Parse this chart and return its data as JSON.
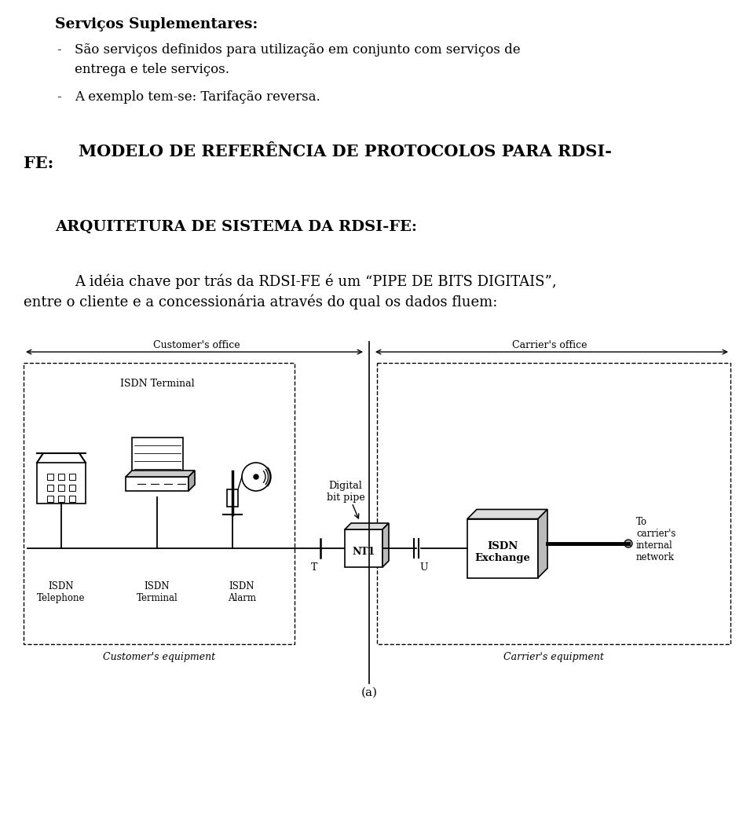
{
  "bg_color": "#ffffff",
  "text_color": "#000000",
  "line1_bold": "Serviços Suplementares:",
  "line2": "- São serviços definidos para utilização em conjunto com serviços de",
  "line3": "   entrega e tele serviços.",
  "line4": "- A exemplo tem-se: Tarifação reversa.",
  "heading1_left": "FE:",
  "heading1_right": "MODELO DE REFERÊNCIA DE PROTOCOLOS PARA RDSI-",
  "heading2": "ARQUITETURA DE SISTEMA DA RDSI-FE:",
  "para1": "A idéia chave por trás da RDSI-FE é um “PIPE DE BITS DIGITAIS”,",
  "para2": "entre o cliente e a concessionária através do qual os dados fluem:",
  "label_customer_office": "Customer's office",
  "label_carrier_office": "Carrier's office",
  "label_customer_equipment": "Customer's equipment",
  "label_carrier_equipment": "Carrier's equipment",
  "label_isdn_terminal_top": "ISDN Terminal",
  "label_isdn_telephone": "ISDN\nTelephone",
  "label_isdn_terminal": "ISDN\nTerminal",
  "label_isdn_alarm": "ISDN\nAlarm",
  "label_digital_bit_pipe": "Digital\nbit pipe",
  "label_T": "T",
  "label_U": "U",
  "label_NT1": "NT1",
  "label_isdn_exchange": "ISDN\nExchange",
  "label_to_carrier": "To\ncarrier's\ninternal\nnetwork",
  "label_a": "(a)"
}
